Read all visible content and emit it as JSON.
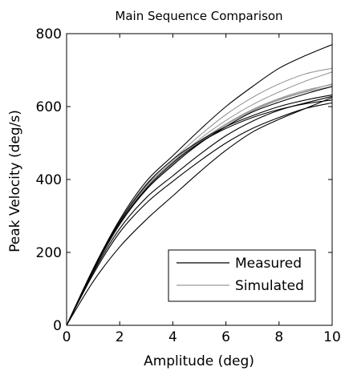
{
  "chart_data": {
    "type": "line",
    "title": "Main Sequence Comparison",
    "xlabel": "Amplitude (deg)",
    "ylabel": "Peak Velocity (deg/s)",
    "xlim": [
      0,
      10
    ],
    "ylim": [
      0,
      800
    ],
    "xticks": [
      "0",
      "2",
      "4",
      "6",
      "8",
      "10"
    ],
    "yticks": [
      "0",
      "200",
      "400",
      "600",
      "800"
    ],
    "grid": false,
    "legend_position": "bottom-right",
    "legend": [
      {
        "label": "Measured",
        "color": "#000000"
      },
      {
        "label": "Simulated",
        "color": "#999999"
      }
    ],
    "x": [
      0,
      1,
      2,
      3,
      4,
      5,
      6,
      7,
      8,
      9,
      10
    ],
    "series": [
      {
        "group": "Measured",
        "color": "#000000",
        "values": [
          0,
          120,
          215,
          290,
          355,
          420,
          480,
          530,
          565,
          595,
          625
        ]
      },
      {
        "group": "Measured",
        "color": "#000000",
        "values": [
          0,
          140,
          255,
          335,
          395,
          450,
          500,
          540,
          570,
          595,
          610
        ]
      },
      {
        "group": "Measured",
        "color": "#000000",
        "values": [
          0,
          145,
          265,
          350,
          410,
          468,
          520,
          560,
          590,
          610,
          628
        ]
      },
      {
        "group": "Measured",
        "color": "#000000",
        "values": [
          0,
          150,
          280,
          375,
          445,
          500,
          540,
          570,
          592,
          608,
          618
        ]
      },
      {
        "group": "Measured",
        "color": "#000000",
        "values": [
          0,
          152,
          285,
          385,
          455,
          505,
          545,
          575,
          600,
          618,
          632
        ]
      },
      {
        "group": "Measured",
        "color": "#000000",
        "values": [
          0,
          150,
          278,
          372,
          440,
          498,
          545,
          585,
          612,
          635,
          655
        ]
      },
      {
        "group": "Measured",
        "color": "#000000",
        "values": [
          0,
          155,
          290,
          395,
          465,
          535,
          600,
          655,
          705,
          740,
          770
        ]
      },
      {
        "group": "Simulated",
        "color": "#999999",
        "values": [
          0,
          150,
          282,
          380,
          450,
          505,
          552,
          590,
          620,
          642,
          662
        ]
      },
      {
        "group": "Simulated",
        "color": "#999999",
        "values": [
          0,
          150,
          282,
          382,
          448,
          510,
          562,
          605,
          640,
          670,
          695
        ]
      },
      {
        "group": "Simulated",
        "color": "#999999",
        "values": [
          0,
          148,
          275,
          372,
          438,
          500,
          552,
          592,
          622,
          645,
          660
        ]
      },
      {
        "group": "Simulated",
        "color": "#999999",
        "values": [
          0,
          152,
          285,
          388,
          455,
          520,
          578,
          625,
          662,
          690,
          705
        ]
      },
      {
        "group": "Simulated",
        "color": "#999999",
        "values": [
          0,
          150,
          280,
          378,
          448,
          502,
          550,
          588,
          618,
          640,
          655
        ]
      }
    ]
  }
}
